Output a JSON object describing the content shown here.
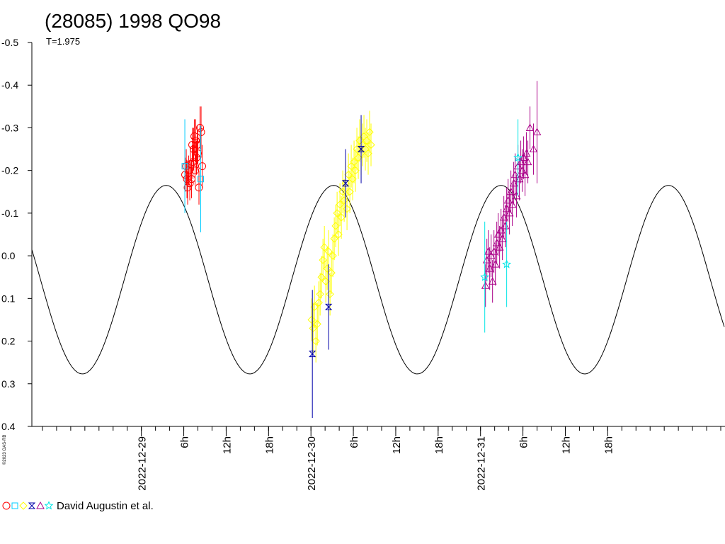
{
  "chart_data": {
    "type": "scatter",
    "title": "(28085) 1998 QO98",
    "subtitle": "T=1.975",
    "credit": "David Augustin et al.",
    "copyright": "©2023 OAS-RB",
    "ylim": [
      0.4,
      -0.5
    ],
    "y_ticks": [
      "-0.5",
      "-0.4",
      "-0.3",
      "-0.2",
      "-0.1",
      "0.0",
      "0.1",
      "0.2",
      "0.3",
      "0.4"
    ],
    "y_tick_values": [
      -0.5,
      -0.4,
      -0.3,
      -0.2,
      -0.1,
      0.0,
      0.1,
      0.2,
      0.3,
      0.4
    ],
    "xlim_hours": [
      -15.5,
      82.6
    ],
    "x_ticks": [
      {
        "hour": 0,
        "label": "2022-12-29"
      },
      {
        "hour": 6,
        "label": "6h"
      },
      {
        "hour": 12,
        "label": "12h"
      },
      {
        "hour": 18,
        "label": "18h"
      },
      {
        "hour": 24,
        "label": "2022-12-30"
      },
      {
        "hour": 30,
        "label": "6h"
      },
      {
        "hour": 36,
        "label": "12h"
      },
      {
        "hour": 42,
        "label": "18h"
      },
      {
        "hour": 48,
        "label": "2022-12-31"
      },
      {
        "hour": 54,
        "label": "6h"
      },
      {
        "hour": 60,
        "label": "12h"
      },
      {
        "hour": 66,
        "label": "18h"
      }
    ],
    "minor_tick_hours": 2,
    "curve": {
      "period_h": 23.7,
      "mean": 0.056,
      "amplitude": 0.221,
      "peak_hour": 3.5
    },
    "legend_symbols": [
      {
        "shape": "circle",
        "color": "#ff0000"
      },
      {
        "shape": "square",
        "color": "#00ccff"
      },
      {
        "shape": "diamond",
        "color": "#ffff00"
      },
      {
        "shape": "hourglass",
        "color": "#0000aa"
      },
      {
        "shape": "triangle",
        "color": "#aa0088"
      },
      {
        "shape": "star",
        "color": "#00e5e5"
      }
    ],
    "series": [
      {
        "shape": "circle",
        "color": "#ff0000",
        "points": [
          [
            6.2,
            -0.19,
            0.04
          ],
          [
            6.35,
            -0.21,
            0.04
          ],
          [
            6.45,
            -0.18,
            0.045
          ],
          [
            6.55,
            -0.16,
            0.04
          ],
          [
            6.7,
            -0.2,
            0.035
          ],
          [
            6.85,
            -0.17,
            0.04
          ],
          [
            6.95,
            -0.215,
            0.04
          ],
          [
            7.1,
            -0.18,
            0.045
          ],
          [
            7.2,
            -0.26,
            0.04
          ],
          [
            7.3,
            -0.22,
            0.04
          ],
          [
            7.4,
            -0.25,
            0.05
          ],
          [
            7.5,
            -0.28,
            0.04
          ],
          [
            7.6,
            -0.2,
            0.035
          ],
          [
            7.7,
            -0.27,
            0.05
          ],
          [
            7.8,
            -0.23,
            0.04
          ],
          [
            7.9,
            -0.26,
            0.045
          ],
          [
            8.0,
            -0.24,
            0.04
          ],
          [
            8.15,
            -0.16,
            0.04
          ],
          [
            8.3,
            -0.3,
            0.05
          ],
          [
            8.45,
            -0.29,
            0.06
          ],
          [
            8.6,
            -0.21,
            0.05
          ]
        ]
      },
      {
        "shape": "square",
        "color": "#00ccff",
        "points": [
          [
            6.15,
            -0.21,
            0.11
          ],
          [
            8.4,
            -0.18,
            0.125
          ]
        ]
      },
      {
        "shape": "diamond",
        "color": "#ffff00",
        "points": [
          [
            24.1,
            0.15,
            0.05
          ],
          [
            24.3,
            0.17,
            0.06
          ],
          [
            24.5,
            0.12,
            0.05
          ],
          [
            24.7,
            0.2,
            0.05
          ],
          [
            24.9,
            0.16,
            0.05
          ],
          [
            25.1,
            0.11,
            0.05
          ],
          [
            25.3,
            0.09,
            0.05
          ],
          [
            25.5,
            0.05,
            0.05
          ],
          [
            25.7,
            0.01,
            0.05
          ],
          [
            25.9,
            -0.02,
            0.05
          ],
          [
            26.1,
            0.06,
            0.05
          ],
          [
            26.3,
            0.03,
            0.05
          ],
          [
            26.5,
            -0.01,
            0.05
          ],
          [
            26.7,
            0.09,
            0.05
          ],
          [
            26.9,
            0.04,
            0.05
          ],
          [
            27.1,
            0.0,
            0.05
          ],
          [
            27.3,
            -0.04,
            0.05
          ],
          [
            27.5,
            -0.07,
            0.05
          ],
          [
            27.7,
            -0.1,
            0.05
          ],
          [
            27.9,
            -0.05,
            0.05
          ],
          [
            28.1,
            -0.12,
            0.05
          ],
          [
            28.3,
            -0.09,
            0.05
          ],
          [
            28.5,
            -0.15,
            0.05
          ],
          [
            28.7,
            -0.13,
            0.05
          ],
          [
            28.9,
            -0.17,
            0.05
          ],
          [
            29.1,
            -0.11,
            0.05
          ],
          [
            29.3,
            -0.19,
            0.05
          ],
          [
            29.5,
            -0.15,
            0.05
          ],
          [
            29.7,
            -0.21,
            0.05
          ],
          [
            29.9,
            -0.18,
            0.05
          ],
          [
            30.1,
            -0.22,
            0.05
          ],
          [
            30.3,
            -0.2,
            0.05
          ],
          [
            30.5,
            -0.25,
            0.05
          ],
          [
            30.7,
            -0.23,
            0.05
          ],
          [
            30.9,
            -0.27,
            0.05
          ],
          [
            31.1,
            -0.24,
            0.05
          ],
          [
            31.3,
            -0.26,
            0.05
          ],
          [
            31.5,
            -0.28,
            0.05
          ],
          [
            31.7,
            -0.25,
            0.05
          ],
          [
            31.9,
            -0.27,
            0.05
          ],
          [
            32.1,
            -0.24,
            0.05
          ],
          [
            32.3,
            -0.29,
            0.05
          ],
          [
            32.5,
            -0.26,
            0.05
          ]
        ]
      },
      {
        "shape": "hourglass",
        "color": "#0000aa",
        "points": [
          [
            24.2,
            0.23,
            0.15
          ],
          [
            26.5,
            0.12,
            0.1
          ],
          [
            28.9,
            -0.17,
            0.08
          ],
          [
            31.1,
            -0.25,
            0.08
          ]
        ]
      },
      {
        "shape": "triangle",
        "color": "#aa0088",
        "points": [
          [
            48.7,
            0.07,
            0.05
          ],
          [
            48.9,
            0.01,
            0.05
          ],
          [
            49.1,
            -0.01,
            0.05
          ],
          [
            49.3,
            0.03,
            0.05
          ],
          [
            49.5,
            0.0,
            0.05
          ],
          [
            49.7,
            0.06,
            0.05
          ],
          [
            49.9,
            -0.01,
            0.05
          ],
          [
            50.1,
            0.02,
            0.05
          ],
          [
            50.3,
            -0.03,
            0.05
          ],
          [
            50.5,
            -0.05,
            0.05
          ],
          [
            50.7,
            -0.02,
            0.05
          ],
          [
            50.9,
            -0.06,
            0.05
          ],
          [
            51.1,
            -0.04,
            0.05
          ],
          [
            51.3,
            -0.09,
            0.05
          ],
          [
            51.5,
            -0.07,
            0.05
          ],
          [
            51.7,
            -0.11,
            0.05
          ],
          [
            51.9,
            -0.13,
            0.05
          ],
          [
            52.1,
            -0.1,
            0.05
          ],
          [
            52.3,
            -0.15,
            0.05
          ],
          [
            52.5,
            -0.12,
            0.05
          ],
          [
            52.7,
            -0.17,
            0.05
          ],
          [
            52.9,
            -0.19,
            0.05
          ],
          [
            53.1,
            -0.14,
            0.05
          ],
          [
            53.3,
            -0.21,
            0.05
          ],
          [
            53.5,
            -0.18,
            0.05
          ],
          [
            53.7,
            -0.22,
            0.05
          ],
          [
            53.9,
            -0.2,
            0.05
          ],
          [
            54.1,
            -0.23,
            0.05
          ],
          [
            54.3,
            -0.19,
            0.05
          ],
          [
            54.5,
            -0.24,
            0.05
          ],
          [
            54.7,
            -0.22,
            0.05
          ],
          [
            55.0,
            -0.3,
            0.05
          ],
          [
            55.5,
            -0.25,
            0.06
          ],
          [
            56.0,
            -0.29,
            0.12
          ]
        ]
      },
      {
        "shape": "star",
        "color": "#00e5e5",
        "points": [
          [
            48.6,
            0.05,
            0.13
          ],
          [
            51.7,
            0.02,
            0.1
          ],
          [
            53.3,
            -0.23,
            0.09
          ]
        ]
      }
    ]
  }
}
